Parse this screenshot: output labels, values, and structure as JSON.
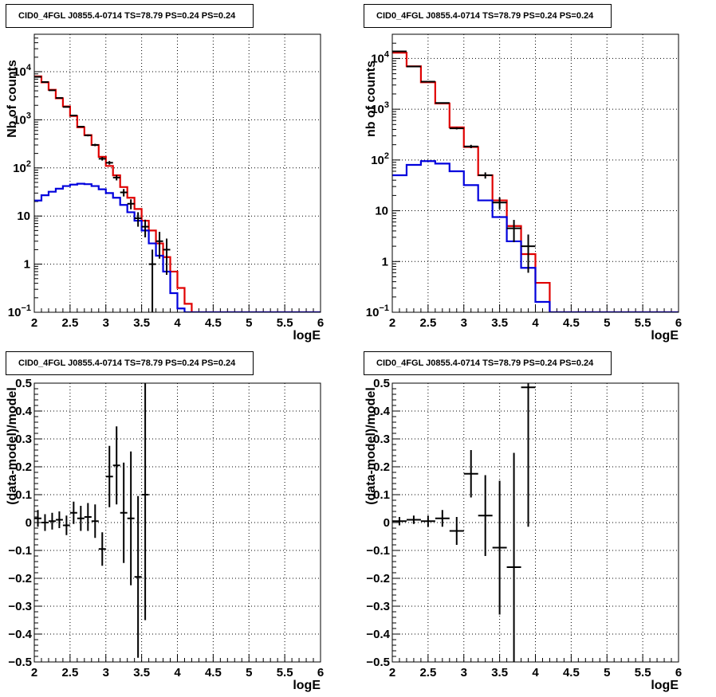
{
  "colors": {
    "data": "#000000",
    "total_model": "#e00000",
    "component_model": "#0000dd",
    "grid": "#000000",
    "background": "#ffffff"
  },
  "chart_data": [
    {
      "type": "histogram",
      "title": "CID0_4FGL J0855.4-0714 TS=78.79 PS=0.24 PS=0.24",
      "xlabel": "logE",
      "ylabel": "Nb of counts",
      "xlim": [
        2,
        6
      ],
      "ylim": [
        0.1,
        60000
      ],
      "yscale": "log",
      "grid": true,
      "x_ticks": [
        "2",
        "2.5",
        "3",
        "3.5",
        "4",
        "4.5",
        "5",
        "5.5",
        "6"
      ],
      "y_ticks": [
        {
          "value": 0.1,
          "base": "10",
          "exp": "−1"
        },
        {
          "value": 1,
          "label": "1"
        },
        {
          "value": 10,
          "label": "10"
        },
        {
          "value": 100,
          "base": "10",
          "exp": "2"
        },
        {
          "value": 1000,
          "base": "10",
          "exp": "3"
        },
        {
          "value": 10000,
          "base": "10",
          "exp": "4"
        }
      ],
      "bin_edges": [
        2.0,
        2.1,
        2.2,
        2.3,
        2.4,
        2.5,
        2.6,
        2.7,
        2.8,
        2.9,
        3.0,
        3.1,
        3.2,
        3.3,
        3.4,
        3.5,
        3.6,
        3.7,
        3.8,
        3.9,
        4.0,
        4.1,
        4.2,
        4.3,
        4.4,
        4.5,
        4.6,
        4.7,
        4.8,
        4.9,
        5.0,
        5.1,
        5.2,
        5.3,
        5.4,
        5.5,
        5.6,
        5.7,
        5.8,
        5.9,
        6.0
      ],
      "series": [
        {
          "name": "",
          "role": "total_model",
          "values": [
            8000,
            6000,
            4200,
            2800,
            1900,
            1200,
            700,
            480,
            300,
            170,
            110,
            70,
            40,
            24,
            14,
            8,
            5,
            2.7,
            1.4,
            0.7,
            0.32,
            0.15,
            0.1,
            0.1,
            0.1,
            0.1,
            0.1,
            0.1,
            0.1,
            0.1,
            0.1,
            0.1,
            0.1,
            0.1,
            0.1,
            0.1,
            0.1,
            0.1,
            0.1,
            0.1
          ]
        },
        {
          "name": "",
          "role": "component_model",
          "values": [
            21,
            27,
            32,
            37,
            42,
            45,
            47,
            46,
            42,
            36,
            30,
            24,
            17,
            12,
            8,
            5,
            2.7,
            1.5,
            0.7,
            0.25,
            0.12,
            0.1,
            0.1,
            0.1,
            0.1,
            0.1,
            0.1,
            0.1,
            0.1,
            0.1,
            0.1,
            0.1,
            0.1,
            0.1,
            0.1,
            0.1,
            0.1,
            0.1,
            0.1,
            0.1
          ]
        },
        {
          "name": "",
          "role": "data",
          "points": [
            {
              "x": 2.05,
              "y": 7800,
              "yerr": [
                88,
                88
              ]
            },
            {
              "x": 2.15,
              "y": 6100,
              "yerr": [
                78,
                78
              ]
            },
            {
              "x": 2.25,
              "y": 4100,
              "yerr": [
                64,
                64
              ]
            },
            {
              "x": 2.35,
              "y": 2850,
              "yerr": [
                53,
                53
              ]
            },
            {
              "x": 2.45,
              "y": 1850,
              "yerr": [
                43,
                43
              ]
            },
            {
              "x": 2.55,
              "y": 1230,
              "yerr": [
                35,
                35
              ]
            },
            {
              "x": 2.65,
              "y": 720,
              "yerr": [
                27,
                27
              ]
            },
            {
              "x": 2.75,
              "y": 475,
              "yerr": [
                22,
                22
              ]
            },
            {
              "x": 2.85,
              "y": 300,
              "yerr": [
                17,
                17
              ]
            },
            {
              "x": 2.95,
              "y": 155,
              "yerr": [
                13,
                13
              ]
            },
            {
              "x": 3.05,
              "y": 128,
              "yerr": [
                11,
                11
              ]
            },
            {
              "x": 3.15,
              "y": 63,
              "yerr": [
                8,
                8
              ]
            },
            {
              "x": 3.25,
              "y": 31,
              "yerr": [
                5.5,
                5.5
              ]
            },
            {
              "x": 3.35,
              "y": 18,
              "yerr": [
                4.2,
                4.2
              ]
            },
            {
              "x": 3.45,
              "y": 9,
              "yerr": [
                3,
                3
              ]
            },
            {
              "x": 3.55,
              "y": 6,
              "yerr": [
                2.4,
                2.4
              ]
            },
            {
              "x": 3.65,
              "y": 1,
              "yerr": [
                0.95,
                1
              ]
            },
            {
              "x": 3.75,
              "y": 3,
              "yerr": [
                1.7,
                1.7
              ]
            },
            {
              "x": 3.85,
              "y": 2,
              "yerr": [
                1.4,
                1.4
              ]
            }
          ]
        }
      ]
    },
    {
      "type": "histogram",
      "title": "CID0_4FGL J0855.4-0714 TS=78.79 PS=0.24 PS=0.24",
      "xlabel": "logE",
      "ylabel": "nb of counts",
      "xlim": [
        2,
        6
      ],
      "ylim": [
        0.1,
        30000
      ],
      "yscale": "log",
      "grid": true,
      "x_ticks": [
        "2",
        "2.5",
        "3",
        "3.5",
        "4",
        "4.5",
        "5",
        "5.5",
        "6"
      ],
      "y_ticks": [
        {
          "value": 0.1,
          "base": "10",
          "exp": "−1"
        },
        {
          "value": 1,
          "label": "1"
        },
        {
          "value": 10,
          "label": "10"
        },
        {
          "value": 100,
          "base": "10",
          "exp": "2"
        },
        {
          "value": 1000,
          "base": "10",
          "exp": "3"
        },
        {
          "value": 10000,
          "base": "10",
          "exp": "4"
        }
      ],
      "bin_edges": [
        2.0,
        2.2,
        2.4,
        2.6,
        2.8,
        3.0,
        3.2,
        3.4,
        3.6,
        3.8,
        4.0,
        4.2,
        4.4,
        4.6,
        4.8,
        5.0,
        5.2,
        5.4,
        5.6,
        5.8,
        6.0
      ],
      "series": [
        {
          "name": "",
          "role": "total_model",
          "values": [
            13000,
            7000,
            3400,
            1300,
            440,
            180,
            50,
            16,
            5,
            1.4,
            0.38,
            0.1,
            0.1,
            0.1,
            0.1,
            0.1,
            0.1,
            0.1,
            0.1,
            0.1
          ]
        },
        {
          "name": "",
          "role": "component_model",
          "values": [
            50,
            80,
            95,
            85,
            60,
            32,
            16,
            7.5,
            2.5,
            0.75,
            0.16,
            0.1,
            0.1,
            0.1,
            0.1,
            0.1,
            0.1,
            0.1,
            0.1,
            0.1
          ]
        },
        {
          "name": "",
          "role": "data",
          "points": [
            {
              "x": 2.1,
              "y": 13800,
              "yerr": [
                117,
                117
              ]
            },
            {
              "x": 2.3,
              "y": 6950,
              "yerr": [
                83,
                83
              ]
            },
            {
              "x": 2.5,
              "y": 3500,
              "yerr": [
                59,
                59
              ]
            },
            {
              "x": 2.7,
              "y": 1330,
              "yerr": [
                36,
                36
              ]
            },
            {
              "x": 2.9,
              "y": 420,
              "yerr": [
                20,
                20
              ]
            },
            {
              "x": 3.1,
              "y": 185,
              "yerr": [
                14,
                14
              ]
            },
            {
              "x": 3.3,
              "y": 50,
              "yerr": [
                7,
                7
              ]
            },
            {
              "x": 3.5,
              "y": 14.5,
              "yerr": [
                3.8,
                3.8
              ]
            },
            {
              "x": 3.7,
              "y": 4.5,
              "yerr": [
                2.1,
                2.1
              ]
            },
            {
              "x": 3.9,
              "y": 2,
              "yerr": [
                1.4,
                1.4
              ]
            }
          ]
        }
      ]
    },
    {
      "type": "scatter",
      "title": "CID0_4FGL J0855.4-0714 TS=78.79 PS=0.24 PS=0.24",
      "xlabel": "logE",
      "ylabel": "(data-model)/model",
      "xlim": [
        2,
        6
      ],
      "ylim": [
        -0.5,
        0.5
      ],
      "grid": true,
      "x_ticks": [
        "2",
        "2.5",
        "3",
        "3.5",
        "4",
        "4.5",
        "5",
        "5.5",
        "6"
      ],
      "y_ticks": [
        "−0.5",
        "−0.4",
        "−0.3",
        "−0.2",
        "−0.1",
        "0",
        "0.1",
        "0.2",
        "0.3",
        "0.4",
        "0.5"
      ],
      "x_halfwidth": 0.05,
      "points": [
        {
          "x": 2.05,
          "y": 0.015,
          "yerr": 0.03
        },
        {
          "x": 2.15,
          "y": 0.0,
          "yerr": 0.03
        },
        {
          "x": 2.25,
          "y": 0.005,
          "yerr": 0.03
        },
        {
          "x": 2.35,
          "y": 0.01,
          "yerr": 0.03
        },
        {
          "x": 2.45,
          "y": -0.01,
          "yerr": 0.035
        },
        {
          "x": 2.55,
          "y": 0.035,
          "yerr": 0.04
        },
        {
          "x": 2.65,
          "y": 0.015,
          "yerr": 0.045
        },
        {
          "x": 2.75,
          "y": 0.02,
          "yerr": 0.05
        },
        {
          "x": 2.85,
          "y": 0.005,
          "yerr": 0.06
        },
        {
          "x": 2.95,
          "y": -0.095,
          "yerr": 0.06
        },
        {
          "x": 3.05,
          "y": 0.165,
          "yerr": 0.11
        },
        {
          "x": 3.15,
          "y": 0.205,
          "yerr": 0.14
        },
        {
          "x": 3.25,
          "y": 0.035,
          "yerr": 0.18
        },
        {
          "x": 3.35,
          "y": 0.015,
          "yerr": 0.24
        },
        {
          "x": 3.45,
          "y": -0.195,
          "yerr": 0.29
        },
        {
          "x": 3.55,
          "y": 0.1,
          "yerr": 0.45
        }
      ]
    },
    {
      "type": "scatter",
      "title": "CID0_4FGL J0855.4-0714 TS=78.79 PS=0.24 PS=0.24",
      "xlabel": "logE",
      "ylabel": "(data-model)/model",
      "xlim": [
        2,
        6
      ],
      "ylim": [
        -0.5,
        0.5
      ],
      "grid": true,
      "x_ticks": [
        "2",
        "2.5",
        "3",
        "3.5",
        "4",
        "4.5",
        "5",
        "5.5",
        "6"
      ],
      "y_ticks": [
        "−0.5",
        "−0.4",
        "−0.3",
        "−0.2",
        "−0.1",
        "0",
        "0.1",
        "0.2",
        "0.3",
        "0.4",
        "0.5"
      ],
      "x_halfwidth": 0.1,
      "points": [
        {
          "x": 2.1,
          "y": 0.005,
          "yerr": 0.015
        },
        {
          "x": 2.3,
          "y": 0.01,
          "yerr": 0.015
        },
        {
          "x": 2.5,
          "y": 0.005,
          "yerr": 0.02
        },
        {
          "x": 2.7,
          "y": 0.015,
          "yerr": 0.03
        },
        {
          "x": 2.9,
          "y": -0.03,
          "yerr": 0.05
        },
        {
          "x": 3.1,
          "y": 0.175,
          "yerr": 0.085
        },
        {
          "x": 3.3,
          "y": 0.025,
          "yerr": 0.145
        },
        {
          "x": 3.5,
          "y": -0.09,
          "yerr": 0.24
        },
        {
          "x": 3.7,
          "y": -0.16,
          "yerr": 0.41
        },
        {
          "x": 3.9,
          "y": 0.485,
          "yerr": 0.5
        }
      ]
    }
  ]
}
